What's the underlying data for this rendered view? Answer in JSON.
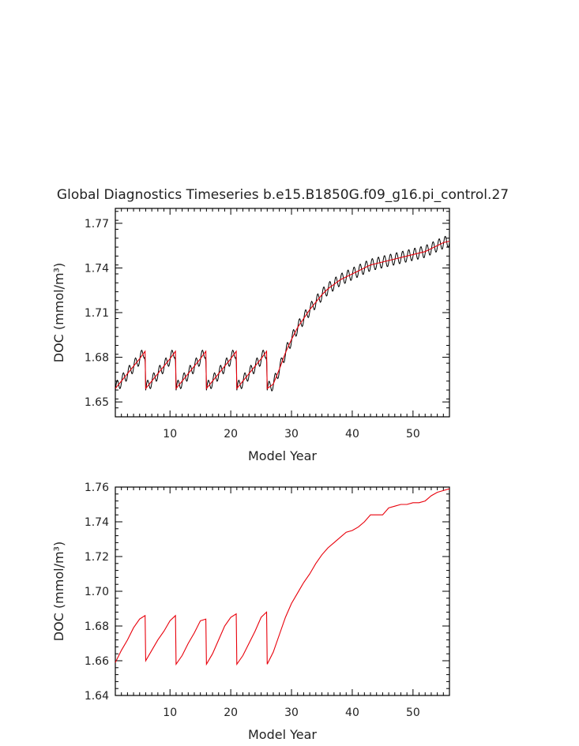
{
  "title": "Global Diagnostics Timeseries b.e15.B1850G.f09_g16.pi_control.27",
  "colors": {
    "annual": "#e8000b",
    "monthly": "#000000",
    "axis": "#000000"
  },
  "chart_data": [
    {
      "type": "line",
      "xlabel": "Model Year",
      "ylabel": "DOC (mmol/m³)",
      "xlim": [
        1,
        56
      ],
      "ylim": [
        1.64,
        1.78
      ],
      "xticks": [
        10,
        20,
        30,
        40,
        50
      ],
      "yticks": [
        1.65,
        1.68,
        1.71,
        1.74,
        1.77
      ],
      "ytick_labels": [
        "1.65",
        "1.68",
        "1.71",
        "1.74",
        "1.77"
      ],
      "series": [
        {
          "color": "#e8000b",
          "x": [
            1,
            2,
            3,
            4,
            5,
            5.9,
            6,
            7,
            8,
            9,
            10,
            10.9,
            11,
            12,
            13,
            14,
            15,
            15.9,
            16,
            17,
            18,
            19,
            20,
            20.9,
            21,
            22,
            23,
            24,
            25,
            25.9,
            26,
            27,
            28,
            29,
            30,
            31,
            32,
            33,
            34,
            35,
            36,
            37,
            38,
            39,
            40,
            41,
            42,
            43,
            44,
            45,
            46,
            47,
            48,
            49,
            50,
            51,
            52,
            53,
            54,
            55,
            56
          ],
          "y": [
            1.659,
            1.664,
            1.669,
            1.674,
            1.679,
            1.684,
            1.659,
            1.664,
            1.669,
            1.674,
            1.679,
            1.684,
            1.659,
            1.664,
            1.669,
            1.674,
            1.679,
            1.684,
            1.659,
            1.664,
            1.669,
            1.674,
            1.679,
            1.684,
            1.659,
            1.664,
            1.669,
            1.674,
            1.679,
            1.684,
            1.659,
            1.662,
            1.672,
            1.683,
            1.692,
            1.7,
            1.706,
            1.712,
            1.717,
            1.722,
            1.726,
            1.729,
            1.732,
            1.734,
            1.736,
            1.738,
            1.74,
            1.742,
            1.743,
            1.744,
            1.745,
            1.746,
            1.747,
            1.748,
            1.749,
            1.75,
            1.751,
            1.753,
            1.755,
            1.757,
            1.758
          ]
        },
        {
          "color": "#000000",
          "seasonal_amplitude": 0.004,
          "description_of_source": "monthly"
        }
      ]
    },
    {
      "type": "line",
      "xlabel": "Model Year",
      "ylabel": "DOC (mmol/m³)",
      "xlim": [
        1,
        56
      ],
      "ylim": [
        1.64,
        1.76
      ],
      "xticks": [
        10,
        20,
        30,
        40,
        50
      ],
      "yticks": [
        1.64,
        1.66,
        1.68,
        1.7,
        1.72,
        1.74,
        1.76
      ],
      "ytick_labels": [
        "1.64",
        "1.66",
        "1.68",
        "1.70",
        "1.72",
        "1.74",
        "1.76"
      ],
      "series": [
        {
          "color": "#e8000b",
          "x": [
            1,
            2,
            3,
            4,
            5,
            5.9,
            6,
            7,
            8,
            9,
            10,
            10.9,
            11,
            12,
            13,
            14,
            15,
            15.9,
            16,
            17,
            18,
            19,
            20,
            20.9,
            21,
            22,
            23,
            24,
            25,
            25.9,
            26,
            27,
            28,
            29,
            30,
            31,
            32,
            33,
            34,
            35,
            36,
            37,
            38,
            39,
            40,
            41,
            42,
            43,
            44,
            45,
            46,
            47,
            48,
            49,
            50,
            51,
            52,
            53,
            54,
            55,
            56
          ],
          "y": [
            1.659,
            1.666,
            1.672,
            1.679,
            1.684,
            1.686,
            1.66,
            1.666,
            1.672,
            1.677,
            1.683,
            1.686,
            1.658,
            1.663,
            1.67,
            1.676,
            1.683,
            1.684,
            1.658,
            1.664,
            1.672,
            1.68,
            1.685,
            1.687,
            1.658,
            1.663,
            1.67,
            1.677,
            1.685,
            1.688,
            1.658,
            1.665,
            1.675,
            1.685,
            1.693,
            1.699,
            1.705,
            1.71,
            1.716,
            1.721,
            1.725,
            1.728,
            1.731,
            1.734,
            1.735,
            1.737,
            1.74,
            1.744,
            1.744,
            1.744,
            1.748,
            1.749,
            1.75,
            1.75,
            1.751,
            1.751,
            1.752,
            1.755,
            1.757,
            1.758,
            1.759
          ]
        }
      ]
    }
  ]
}
